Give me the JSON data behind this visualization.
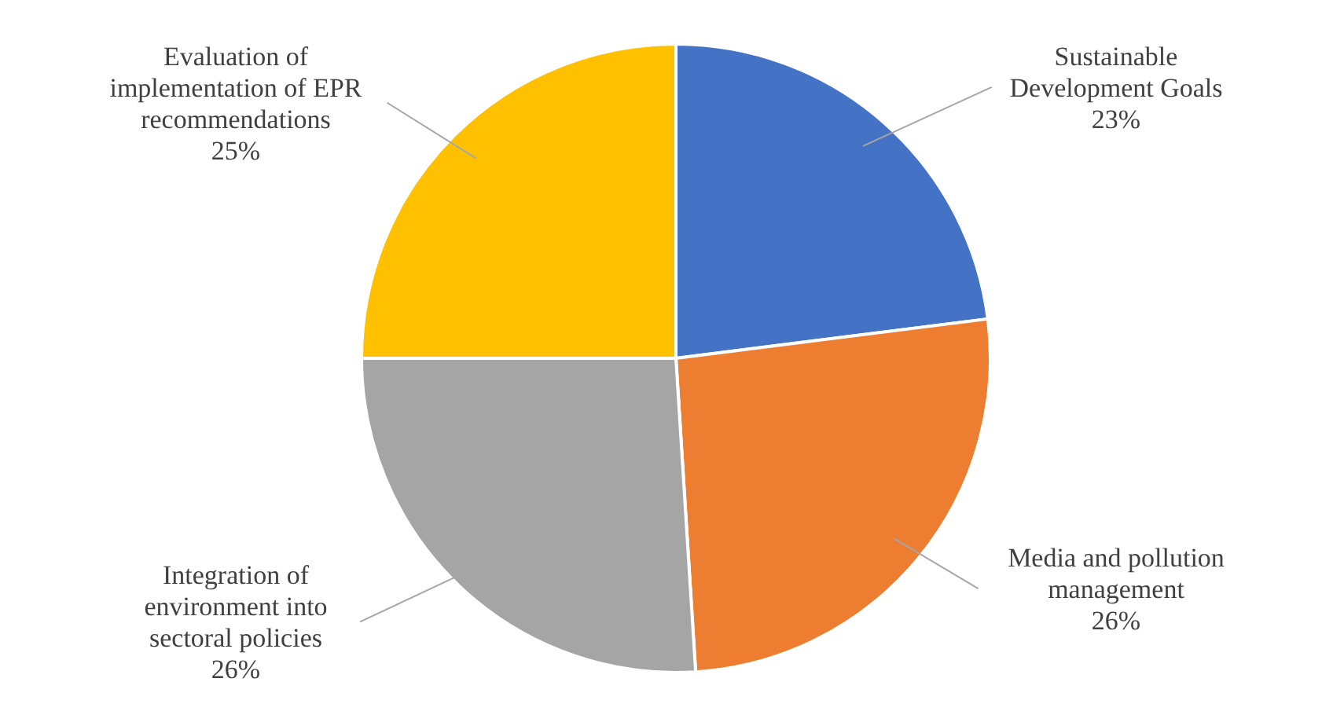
{
  "chart_data": {
    "type": "pie",
    "categories": [
      "Sustainable Development Goals",
      "Media and pollution management",
      "Integration of environment into sectoral policies",
      "Evaluation of implementation of EPR recommendations"
    ],
    "values": [
      23,
      26,
      26,
      25
    ],
    "colors": [
      "#4472c4",
      "#ed7d31",
      "#a5a5a5",
      "#ffc000"
    ],
    "value_labels": [
      "23%",
      "26%",
      "26%",
      "25%"
    ]
  }
}
